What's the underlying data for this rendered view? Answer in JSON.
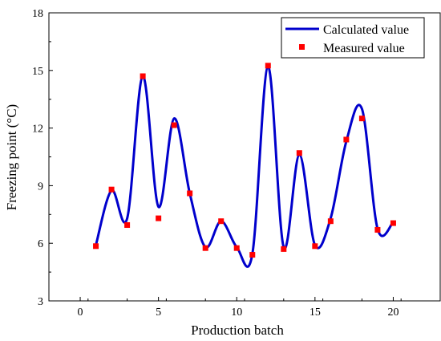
{
  "chart_data": {
    "type": "line",
    "xlabel": "Production batch",
    "ylabel": "Freezing point (°C)",
    "xlim": [
      -2,
      23
    ],
    "ylim": [
      3,
      18
    ],
    "xticks": [
      0,
      5,
      10,
      15,
      20
    ],
    "yticks": [
      3,
      6,
      9,
      12,
      15,
      18
    ],
    "legend_position": "top-right",
    "series": [
      {
        "name": "Calculated value",
        "style": "smooth-line",
        "color": "#0000CC",
        "x": [
          1,
          2,
          3,
          4,
          5,
          6,
          7,
          8,
          9,
          10,
          11,
          12,
          13,
          14,
          15,
          16,
          17,
          18,
          19,
          20
        ],
        "values": [
          5.9,
          8.75,
          7.3,
          14.7,
          7.9,
          12.5,
          8.6,
          5.8,
          7.15,
          5.8,
          5.45,
          15.2,
          5.8,
          10.6,
          5.9,
          7.3,
          11.3,
          13.0,
          6.75,
          7.1
        ]
      },
      {
        "name": "Measured value",
        "style": "square-markers",
        "color": "#FF0000",
        "x": [
          1,
          2,
          3,
          4,
          5,
          6,
          7,
          8,
          9,
          10,
          11,
          12,
          13,
          14,
          15,
          16,
          17,
          18,
          19,
          20
        ],
        "values": [
          5.85,
          8.8,
          6.95,
          14.7,
          7.3,
          12.15,
          8.6,
          5.75,
          7.15,
          5.75,
          5.4,
          15.25,
          5.7,
          10.7,
          5.85,
          7.15,
          11.4,
          12.5,
          6.7,
          7.05
        ]
      }
    ]
  }
}
